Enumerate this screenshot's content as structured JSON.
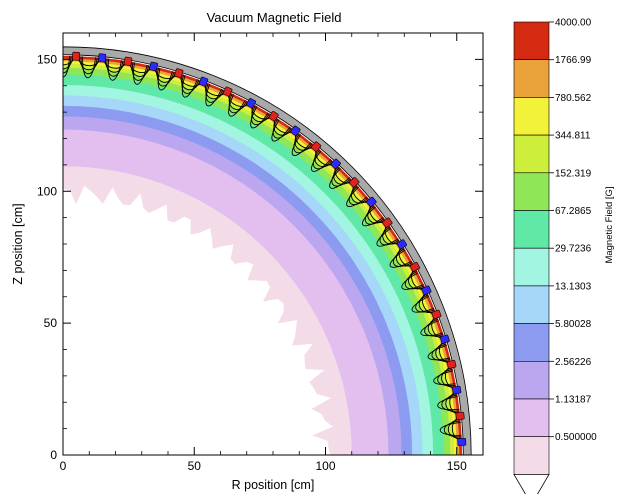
{
  "chart_data": {
    "type": "heatmap",
    "title": "Vacuum Magnetic Field",
    "xlabel": "R position [cm]",
    "ylabel": "Z position [cm]",
    "xlim": [
      0,
      160
    ],
    "ylim": [
      0,
      160
    ],
    "xticks": [
      "0",
      "50",
      "100",
      "150"
    ],
    "yticks": [
      "0",
      "50",
      "100",
      "150"
    ],
    "x_tick_values": [
      0,
      50,
      100,
      150
    ],
    "y_tick_values": [
      0,
      50,
      100,
      150
    ],
    "grid": false,
    "colorbar": {
      "label": "Magnetic Field [G]",
      "levels": [
        "4000.00",
        "1766.99",
        "780.562",
        "344.811",
        "152.319",
        "67.2865",
        "29.7236",
        "13.1303",
        "5.80028",
        "2.56226",
        "1.13187",
        "0.500000"
      ],
      "colors": [
        "#d42a12",
        "#e9a33a",
        "#f2f23a",
        "#cdee3a",
        "#8fe657",
        "#5fe8a6",
        "#a2f5e0",
        "#a6d6f8",
        "#8c9af0",
        "#bba7f0",
        "#e3bff0",
        "#f3dce8"
      ]
    },
    "wall": {
      "inner_radius_cm": 152.5,
      "outer_radius_cm": 155.5,
      "color": "#a9a9a9"
    },
    "magnets": {
      "radius_cm": 152,
      "count": 24,
      "colors": [
        "#2b2bff",
        "#e0231f"
      ]
    }
  }
}
